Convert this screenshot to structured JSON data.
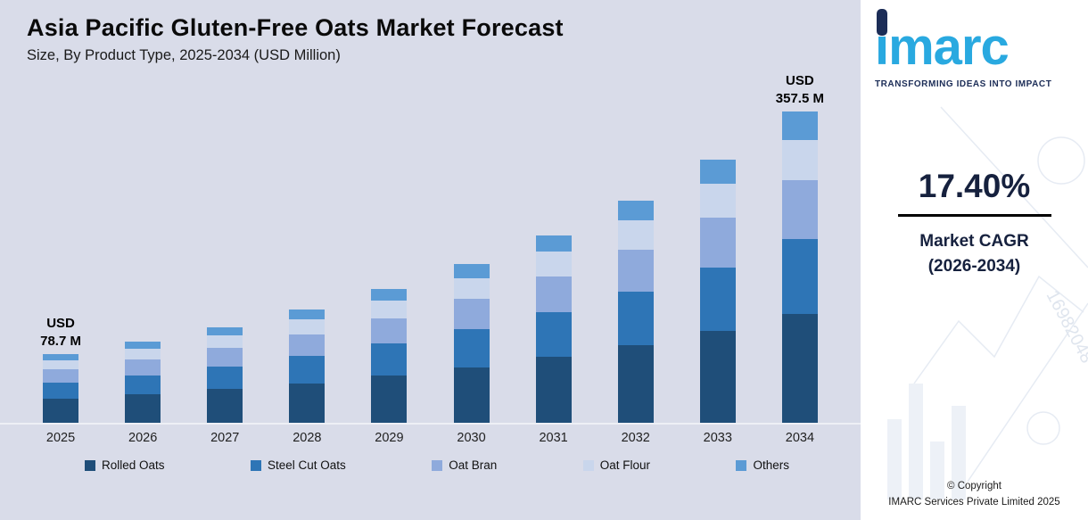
{
  "header": {
    "title": "Asia Pacific Gluten-Free Oats Market Forecast",
    "subtitle": "Size, By Product Type, 2025-2034 (USD Million)"
  },
  "chart_data": {
    "type": "bar",
    "stacked": true,
    "unit": "USD Million",
    "categories": [
      "2025",
      "2026",
      "2027",
      "2028",
      "2029",
      "2030",
      "2031",
      "2032",
      "2033",
      "2034"
    ],
    "series": [
      {
        "name": "Rolled Oats",
        "color": "#1f4e79",
        "values": [
          27.5,
          32.6,
          38.6,
          45.6,
          54.0,
          63.9,
          75.6,
          89.4,
          105.8,
          125.1
        ]
      },
      {
        "name": "Steel Cut Oats",
        "color": "#2e75b6",
        "values": [
          18.9,
          22.3,
          26.4,
          31.3,
          37.0,
          43.8,
          51.8,
          61.3,
          72.6,
          85.8
        ]
      },
      {
        "name": "Oat Bran",
        "color": "#8faadc",
        "values": [
          15.0,
          17.7,
          20.9,
          24.8,
          29.3,
          34.7,
          41.0,
          48.5,
          57.4,
          67.9
        ]
      },
      {
        "name": "Oat Flour",
        "color": "#c9d6ec",
        "values": [
          10.2,
          12.1,
          14.3,
          17.0,
          20.1,
          23.7,
          28.1,
          33.2,
          39.3,
          46.5
        ]
      },
      {
        "name": "Others",
        "color": "#5b9bd5",
        "values": [
          7.1,
          8.4,
          9.9,
          11.7,
          13.9,
          16.4,
          19.4,
          23.0,
          27.2,
          32.2
        ]
      }
    ],
    "totals": [
      78.7,
      93.1,
      110.2,
      130.4,
      154.3,
      182.5,
      216.0,
      255.5,
      302.3,
      357.5
    ],
    "annotations": [
      {
        "category": "2025",
        "lines": [
          "USD",
          "78.7 M"
        ]
      },
      {
        "category": "2034",
        "lines": [
          "USD",
          "357.5 M"
        ]
      }
    ],
    "ylim": [
      0,
      400
    ],
    "grid": false,
    "legend_position": "bottom"
  },
  "sidebar": {
    "logo": {
      "text": "imarc",
      "tagline": "TRANSFORMING IDEAS INTO IMPACT"
    },
    "cagr": {
      "value": "17.40%",
      "label": "Market CAGR",
      "period": "(2026-2034)"
    },
    "watermark_text": "16982048",
    "copyright": {
      "line1": "© Copyright",
      "line2": "IMARC Services Private Limited 2025"
    }
  }
}
